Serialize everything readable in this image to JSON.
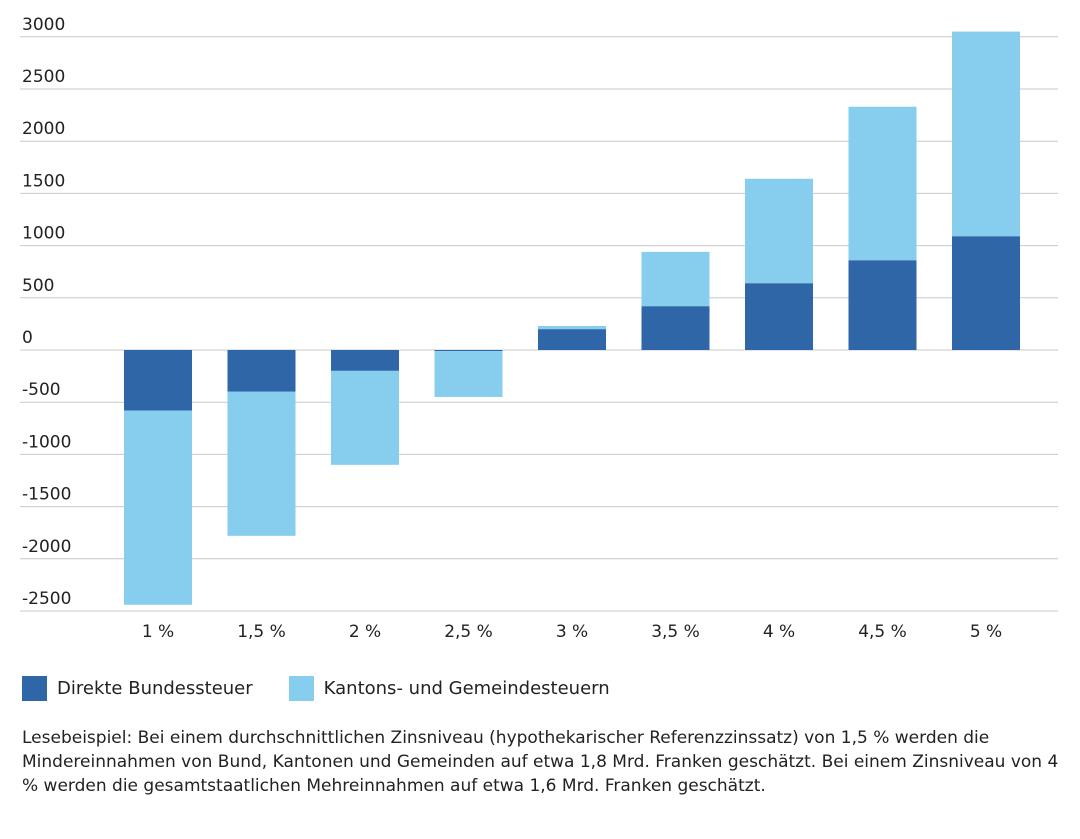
{
  "chart_data": {
    "type": "bar",
    "stacked": true,
    "categories": [
      "1 %",
      "1,5 %",
      "2 %",
      "2,5 %",
      "3 %",
      "3,5 %",
      "4 %",
      "4,5 %",
      "5 %"
    ],
    "series": [
      {
        "name": "Direkte Bundessteuer",
        "color": "#2e66a8",
        "values": [
          -580,
          -400,
          -200,
          -10,
          200,
          420,
          640,
          860,
          1090
        ]
      },
      {
        "name": "Kantons- und Gemeindesteuern",
        "color": "#87cdee",
        "values": [
          -1860,
          -1380,
          -900,
          -440,
          30,
          520,
          1000,
          1470,
          1960
        ]
      }
    ],
    "yticks": [
      3000,
      2500,
      2000,
      1500,
      1000,
      500,
      0,
      -500,
      -1000,
      -1500,
      -2000,
      -2500
    ],
    "ylim": [
      -2500,
      3000
    ],
    "grid": true,
    "legend_position": "bottom-left"
  },
  "note": "Lesebeispiel: Bei einem durchschnittlichen Zinsniveau (hypothekarischer Referenzzinssatz) von 1,5 % werden die Mindereinnahmen von Bund, Kantonen und Gemeinden auf etwa 1,8 Mrd. Franken geschätzt. Bei einem Zinsniveau von 4 % werden die gesamtstaatlichen Mehreinnahmen auf etwa 1,6 Mrd. Franken geschätzt."
}
